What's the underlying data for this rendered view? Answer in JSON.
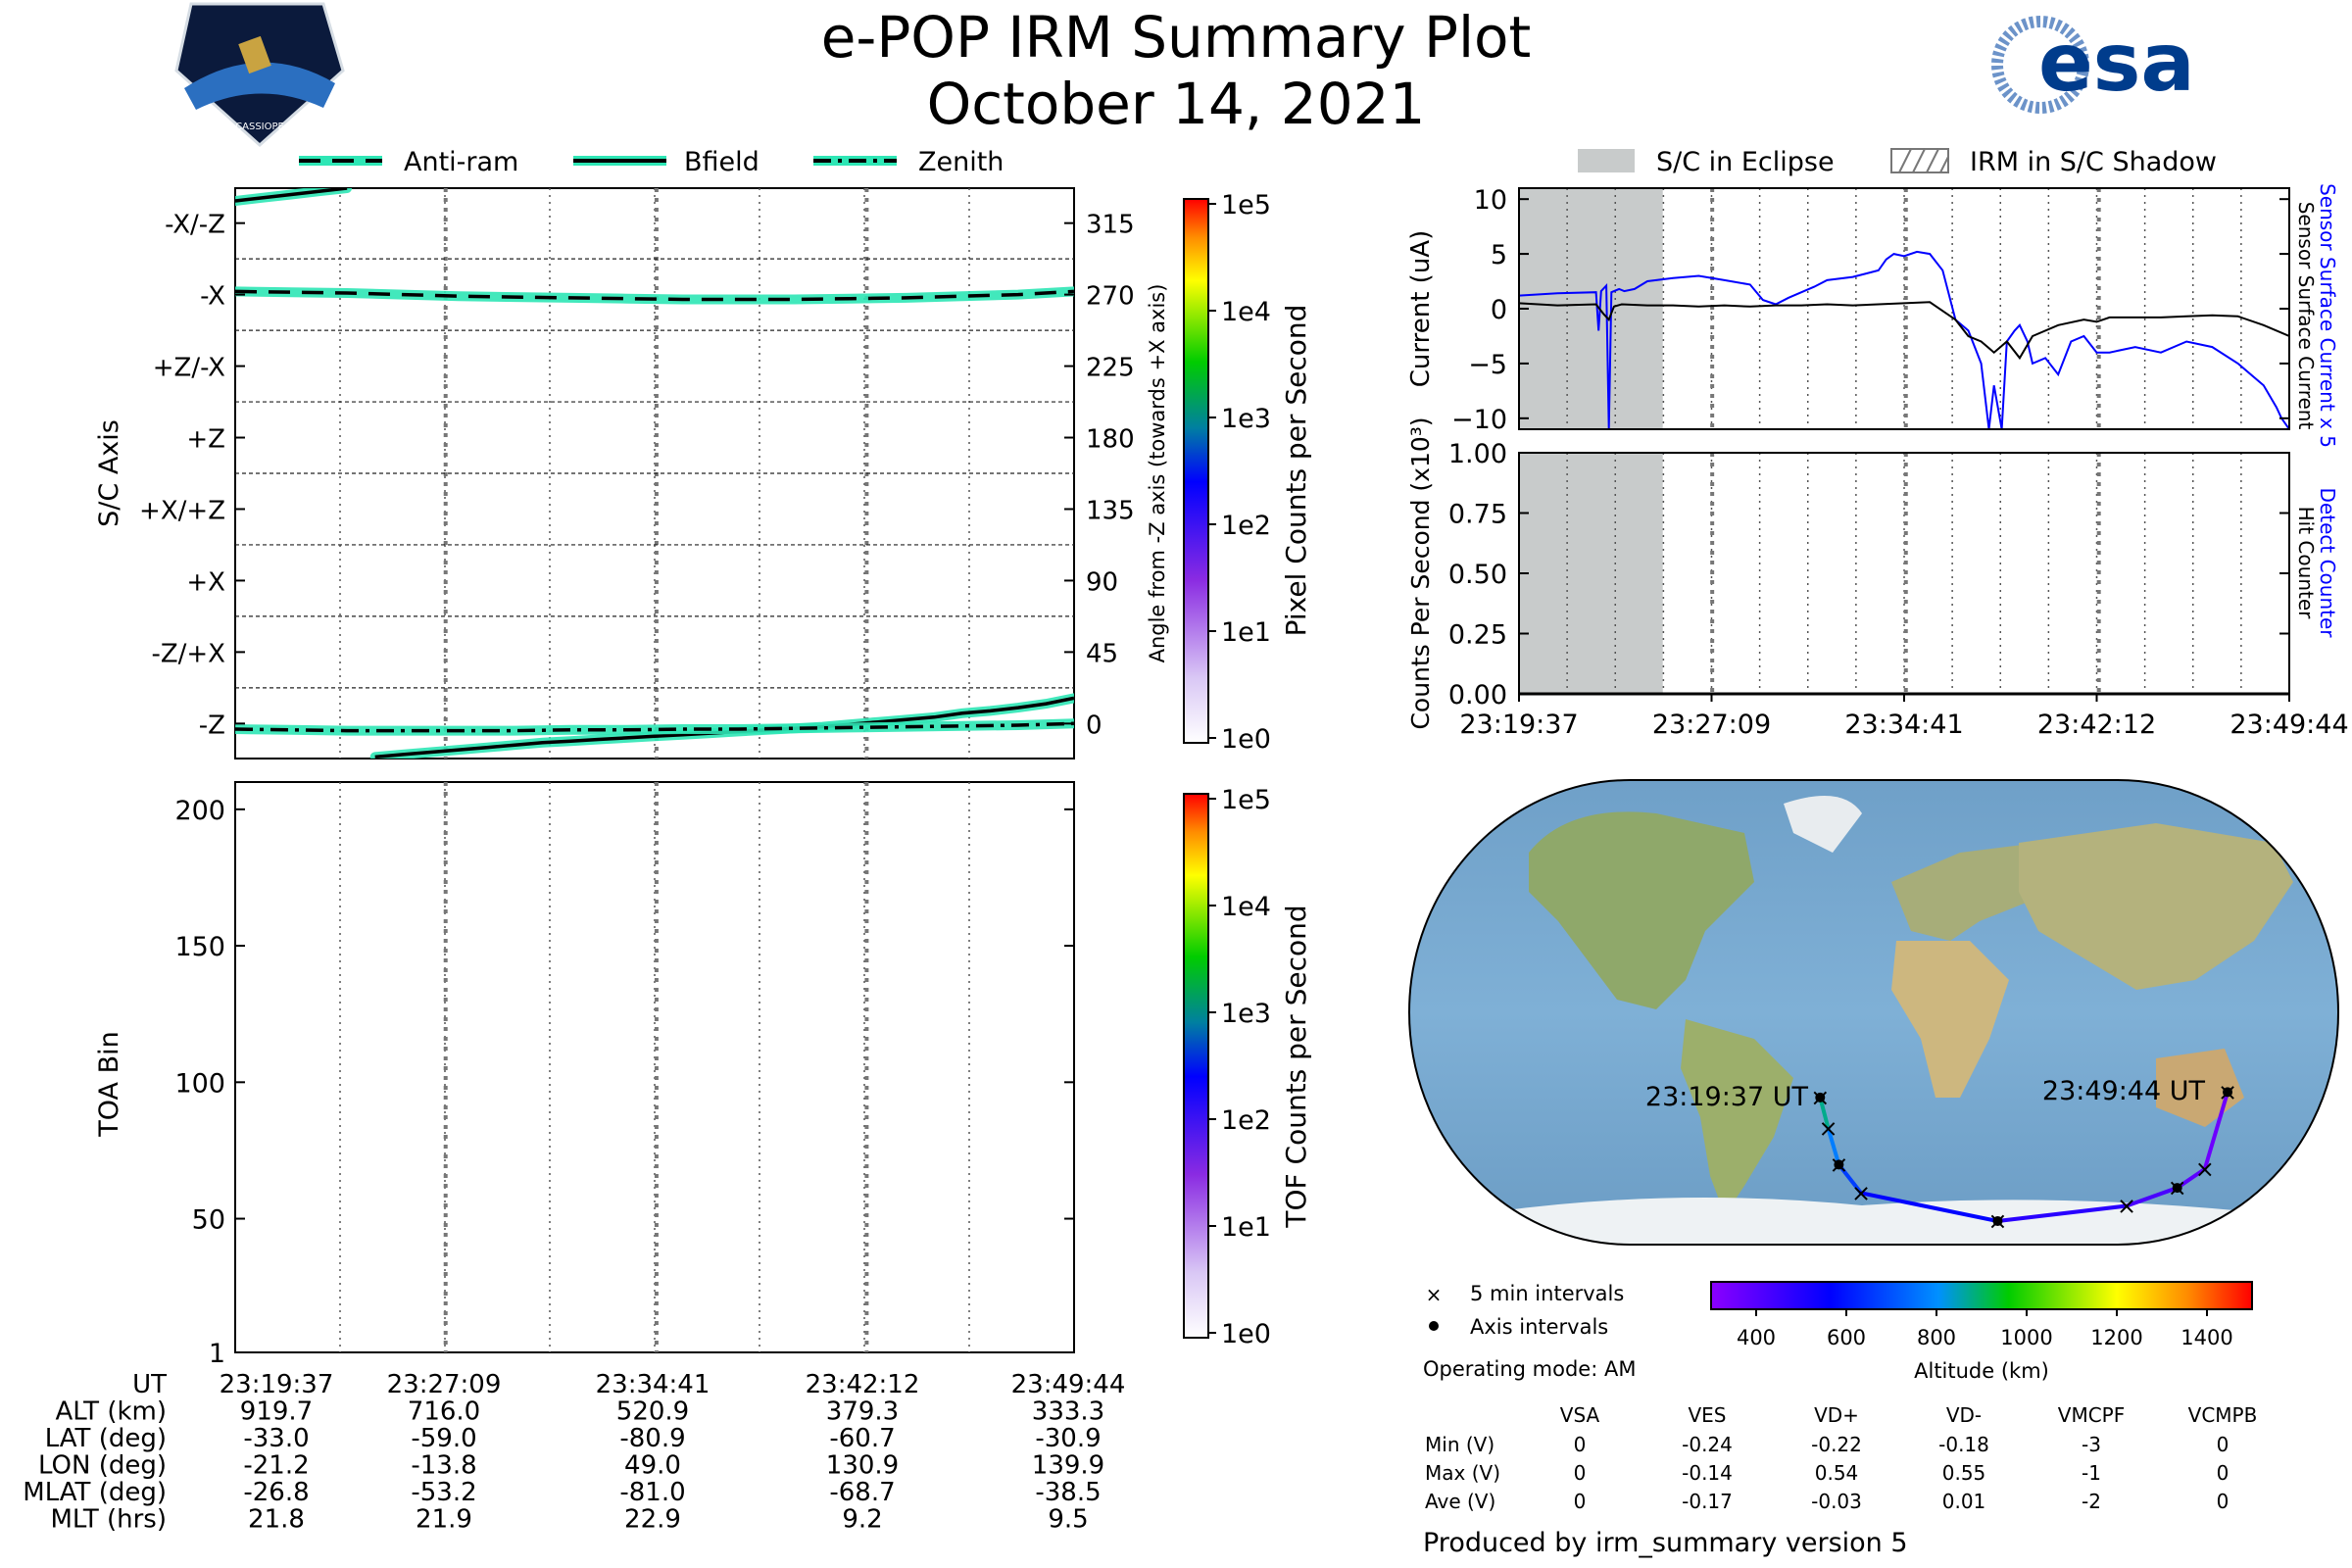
{
  "title": "e-POP IRM Summary Plot",
  "subtitle": "October 14, 2021",
  "logo_left_text": "CASSIOPE",
  "logo_right_text": "esa",
  "colors": {
    "teal": "#2ee6b5",
    "blue": "#0000ff",
    "eclipse": "#c8cbcb"
  },
  "chart_data": [
    {
      "name": "attitude",
      "type": "line",
      "legend": [
        "Anti-ram",
        "Bfield",
        "Zenith"
      ],
      "ylabel": "S/C Axis",
      "y2label": "Angle from -Z axis (towards +X axis)",
      "y_tick_labels": [
        "-X/-Z",
        "-X",
        "+Z/-X",
        "+Z",
        "+X/+Z",
        "+X",
        "-Z/+X",
        "-Z"
      ],
      "y_tick_values": [
        315,
        270,
        225,
        180,
        135,
        90,
        45,
        0
      ],
      "y2_tick_labels": [
        "315",
        "270",
        "225",
        "180",
        "135",
        "90",
        "45",
        "0"
      ],
      "ylim": [
        -22,
        337
      ],
      "series": [
        {
          "name": "Anti-ram",
          "style": "dashed",
          "x": [
            0,
            2,
            4,
            6,
            8,
            10,
            12,
            14,
            16,
            18,
            20,
            22,
            24,
            26,
            28,
            30
          ],
          "y": [
            272,
            271.5,
            271,
            270,
            269,
            268.5,
            268,
            267.5,
            267,
            267,
            267,
            267.5,
            268,
            269,
            270,
            272
          ]
        },
        {
          "name": "Bfield",
          "style": "solid",
          "x": [
            0,
            1,
            2,
            3,
            4,
            5,
            6,
            7,
            8,
            9,
            10,
            11,
            12,
            13,
            14,
            15,
            16,
            17,
            18,
            19,
            20,
            21,
            22,
            23,
            24,
            25,
            26,
            27,
            28,
            29,
            30
          ],
          "y": [
            329,
            331,
            333,
            335,
            337,
            -21,
            -19.5,
            -18,
            -16.5,
            -15,
            -13.5,
            -12,
            -11,
            -10,
            -9,
            -8,
            -7,
            -6,
            -5,
            -4,
            -3,
            -2,
            -0.5,
            1,
            2.5,
            4,
            6.5,
            8,
            10,
            12.5,
            16
          ]
        },
        {
          "name": "Zenith",
          "style": "dashdot",
          "x": [
            0,
            2,
            4,
            6,
            8,
            10,
            12,
            14,
            16,
            18,
            20,
            22,
            24,
            26,
            28,
            30
          ],
          "y": [
            -3.5,
            -4,
            -4.5,
            -4.5,
            -4.5,
            -4.5,
            -4,
            -4,
            -3.5,
            -3.5,
            -3,
            -2.5,
            -2,
            -1.5,
            -1,
            0
          ]
        }
      ]
    },
    {
      "name": "attitude-colorbar",
      "label": "Pixel Counts per Second",
      "tick_labels": [
        "1e5",
        "1e4",
        "1e3",
        "1e2",
        "1e1",
        "1e0"
      ]
    },
    {
      "name": "toa",
      "type": "heatmap",
      "ylabel": "TOA Bin",
      "y_tick_labels": [
        "200",
        "150",
        "100",
        "50",
        "1"
      ],
      "y_tick_values": [
        200,
        150,
        100,
        50,
        1
      ],
      "ylim": [
        1,
        210
      ],
      "values": []
    },
    {
      "name": "toa-colorbar",
      "label": "TOF Counts per Second",
      "tick_labels": [
        "1e5",
        "1e4",
        "1e3",
        "1e2",
        "1e1",
        "1e0"
      ]
    },
    {
      "name": "current",
      "type": "line",
      "legend": [
        "S/C in Eclipse",
        "IRM in S/C Shadow"
      ],
      "ylabel": "Current (uA)",
      "right_label_1": "Sensor Surface Current x 5",
      "right_label_2": "Sensor Surface Current",
      "y_tick_labels": [
        "10",
        "5",
        "0",
        "−5",
        "−10"
      ],
      "y_tick_values": [
        10,
        5,
        0,
        -5,
        -10
      ],
      "ylim": [
        -11,
        11
      ],
      "eclipse_x": [
        0,
        5.6
      ],
      "series": [
        {
          "name": "Sensor Surface Current x 5",
          "color": "#0000ff",
          "x": [
            0,
            1.5,
            3,
            3.1,
            3.2,
            3.4,
            3.5,
            3.6,
            3.9,
            4.0,
            4.1,
            4.5,
            5.0,
            6.0,
            7.0,
            8.0,
            9.0,
            9.5,
            10.0,
            10.5,
            11.0,
            11.5,
            12.0,
            13.0,
            14.0,
            14.3,
            14.6,
            15.0,
            15.5,
            16.0,
            16.5,
            17.0,
            17.5,
            18.0,
            18.3,
            18.5,
            18.8,
            19.0,
            19.3,
            19.5,
            19.8,
            20.0,
            20.5,
            21.0,
            21.5,
            22.0,
            22.5,
            23.0,
            24.0,
            25.0,
            26.0,
            27.0,
            28.0,
            29.0,
            29.5,
            29.7,
            30.0
          ],
          "y": [
            1.2,
            1.4,
            1.5,
            -2,
            1.6,
            2.1,
            -11,
            1.5,
            1.8,
            1.7,
            1.6,
            1.8,
            2.5,
            2.8,
            3.0,
            2.6,
            2.2,
            0.8,
            0.4,
            1.0,
            1.5,
            2.0,
            2.6,
            2.9,
            3.5,
            4.5,
            5.0,
            4.8,
            5.2,
            5.0,
            3.5,
            -1,
            -2,
            -5,
            -11,
            -7,
            -11,
            -3,
            -2,
            -1.5,
            -3,
            -5,
            -4.5,
            -6,
            -3,
            -2.5,
            -4,
            -4,
            -3.5,
            -4,
            -3,
            -3.5,
            -5,
            -7,
            -9,
            -10,
            -11
          ]
        },
        {
          "name": "Sensor Surface Current",
          "color": "#000000",
          "x": [
            0,
            1.5,
            3.0,
            3.3,
            3.5,
            3.7,
            4.0,
            5.0,
            6.0,
            7.0,
            8.0,
            9.0,
            10.0,
            11.0,
            12.0,
            13.0,
            14.0,
            15.0,
            16.0,
            17.0,
            17.5,
            18.0,
            18.5,
            19.0,
            19.5,
            20.0,
            21.0,
            22.0,
            22.5,
            23.0,
            24.0,
            25.0,
            26.0,
            27.0,
            28.0,
            29.0,
            30.0
          ],
          "y": [
            0.5,
            0.3,
            0.4,
            -0.5,
            -1,
            0.2,
            0.4,
            0.3,
            0.3,
            0.2,
            0.3,
            0.2,
            0.3,
            0.3,
            0.4,
            0.3,
            0.4,
            0.5,
            0.6,
            -1,
            -2.5,
            -3,
            -4,
            -3,
            -4.5,
            -2.5,
            -1.5,
            -1,
            -1.2,
            -0.8,
            -0.8,
            -0.8,
            -0.7,
            -0.6,
            -0.7,
            -1.5,
            -2.5
          ]
        }
      ]
    },
    {
      "name": "counts",
      "type": "line",
      "ylabel": "Counts Per Second (x10³)",
      "right_label_1": "Detect Counter",
      "right_label_2": "Hit Counter",
      "y_tick_labels": [
        "1.00",
        "0.75",
        "0.50",
        "0.25",
        "0.00"
      ],
      "y_tick_values": [
        1.0,
        0.75,
        0.5,
        0.25,
        0.0
      ],
      "ylim": [
        0,
        1
      ],
      "eclipse_x": [
        0,
        5.6
      ],
      "x_tick_labels": [
        "23:19:37",
        "23:27:09",
        "23:34:41",
        "23:42:12",
        "23:49:44"
      ],
      "series": [
        {
          "name": "Detect Counter",
          "color": "#0000ff",
          "x": [
            0,
            30
          ],
          "y": [
            0,
            0
          ]
        },
        {
          "name": "Hit Counter",
          "color": "#000000",
          "x": [
            0,
            30
          ],
          "y": [
            0,
            0
          ]
        }
      ]
    },
    {
      "name": "map",
      "type": "scatter",
      "start_label": "23:19:37 UT",
      "end_label": "23:49:44 UT",
      "lon": [
        -21.2,
        -18.0,
        -13.8,
        -5.0,
        49.0,
        100.0,
        120.0,
        130.9,
        139.9
      ],
      "lat": [
        -33.0,
        -45.0,
        -59.0,
        -70.0,
        -80.9,
        -75.0,
        -68.0,
        -60.7,
        -30.9
      ],
      "altitude_km": [
        919.7,
        830,
        716.0,
        620,
        520.9,
        450,
        400,
        379.3,
        333.3
      ],
      "legend": [
        "5 min intervals",
        "Axis intervals"
      ],
      "mode_label": "Operating mode: AM",
      "colorbar_label": "Altitude (km)",
      "colorbar_ticks": [
        "400",
        "600",
        "800",
        "1000",
        "1200",
        "1400"
      ],
      "colorbar_tick_values": [
        400,
        600,
        800,
        1000,
        1200,
        1400
      ],
      "colorbar_range": [
        300,
        1500
      ]
    }
  ],
  "ut_table": {
    "row_labels": [
      "UT",
      "ALT (km)",
      "LAT (deg)",
      "LON (deg)",
      "MLAT (deg)",
      "MLT (hrs)"
    ],
    "rows": [
      [
        "23:19:37",
        "23:27:09",
        "23:34:41",
        "23:42:12",
        "23:49:44"
      ],
      [
        "919.7",
        "716.0",
        "520.9",
        "379.3",
        "333.3"
      ],
      [
        "-33.0",
        "-59.0",
        "-80.9",
        "-60.7",
        "-30.9"
      ],
      [
        "-21.2",
        "-13.8",
        "49.0",
        "130.9",
        "139.9"
      ],
      [
        "-26.8",
        "-53.2",
        "-81.0",
        "-68.7",
        "-38.5"
      ],
      [
        "21.8",
        "21.9",
        "22.9",
        "9.2",
        "9.5"
      ]
    ]
  },
  "voltage_table": {
    "headers": [
      "VSA",
      "VES",
      "VD+",
      "VD-",
      "VMCPF",
      "VCMPB"
    ],
    "row_labels": [
      "Min (V)",
      "Max (V)",
      "Ave (V)"
    ],
    "rows": [
      [
        "0",
        "-0.24",
        "-0.22",
        "-0.18",
        "-3",
        "0"
      ],
      [
        "0",
        "-0.14",
        "0.54",
        "0.55",
        "-1",
        "0"
      ],
      [
        "0",
        "-0.17",
        "-0.03",
        "0.01",
        "-2",
        "0"
      ]
    ]
  },
  "footer": "Produced by irm_summary version 5"
}
